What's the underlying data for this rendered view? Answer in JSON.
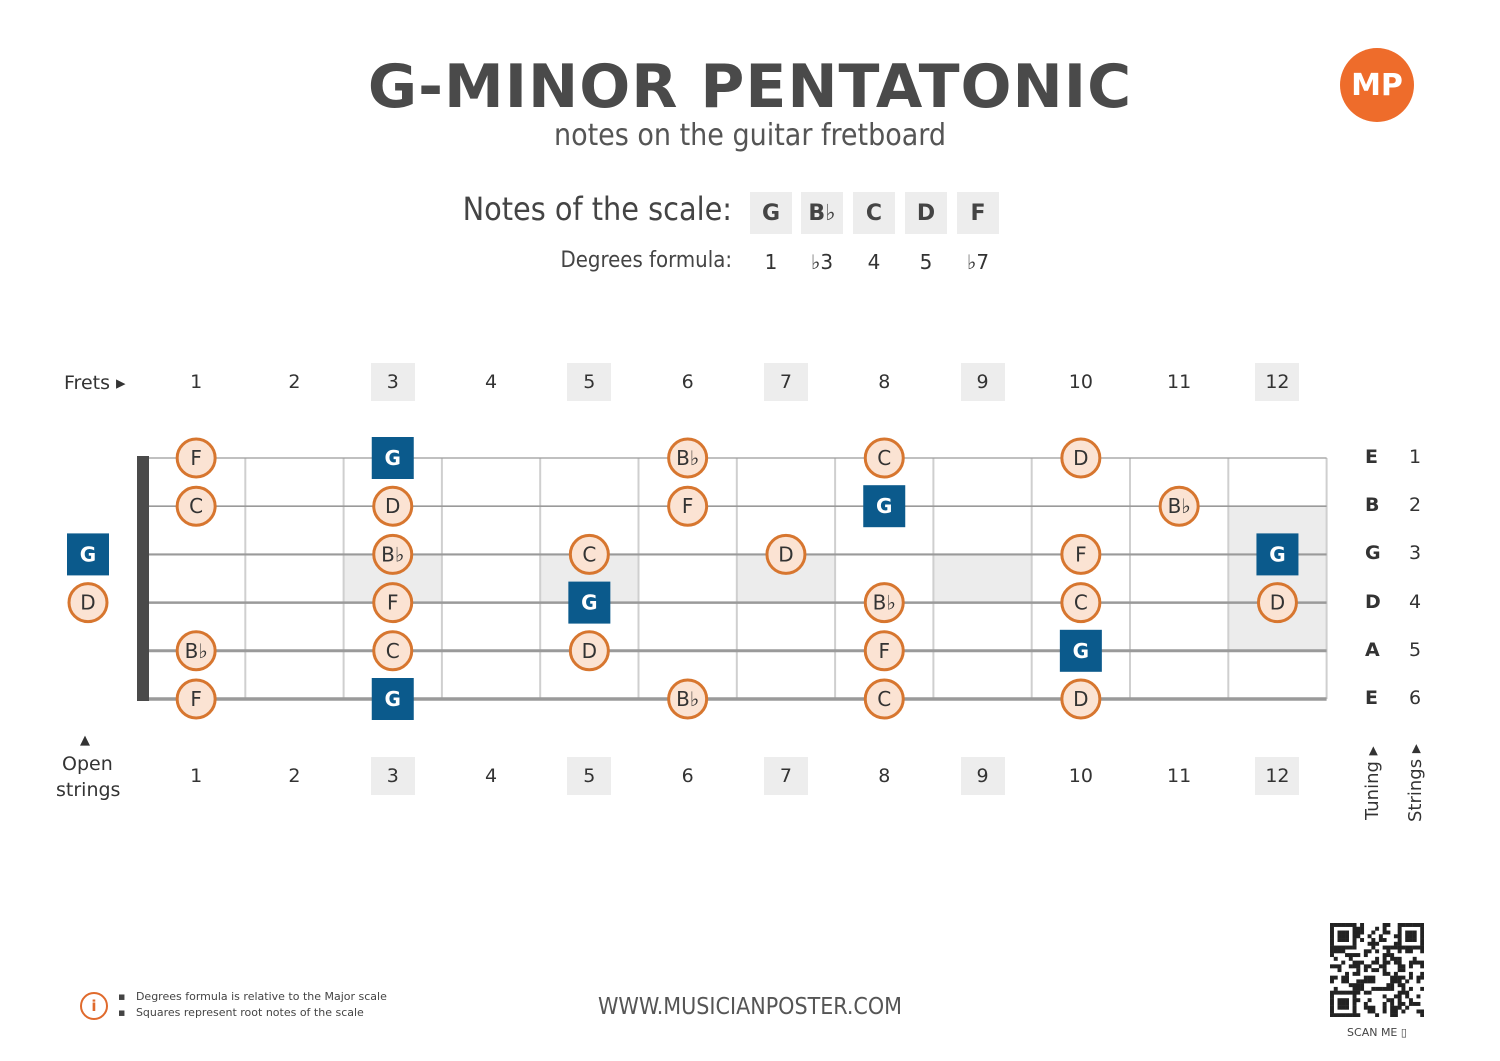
{
  "title": "G-MINOR PENTATONIC",
  "subtitle": "notes on the guitar fretboard",
  "logo_text": "MP",
  "scale": {
    "label": "Notes of the scale:",
    "notes": [
      "G",
      "B♭",
      "C",
      "D",
      "F"
    ],
    "degrees_label": "Degrees formula:",
    "degrees": [
      "1",
      "♭3",
      "4",
      "5",
      "♭7"
    ]
  },
  "frets": {
    "label": "Frets ▸",
    "numbers": [
      "1",
      "2",
      "3",
      "4",
      "5",
      "6",
      "7",
      "8",
      "9",
      "10",
      "11",
      "12"
    ],
    "inlay_frets": [
      3,
      5,
      7,
      9,
      12
    ]
  },
  "open_strings_label_1": "Open",
  "open_strings_label_2": "strings",
  "open_marker": "▲",
  "strings": [
    {
      "tuning": "E",
      "number": "1"
    },
    {
      "tuning": "B",
      "number": "2"
    },
    {
      "tuning": "G",
      "number": "3"
    },
    {
      "tuning": "D",
      "number": "4"
    },
    {
      "tuning": "A",
      "number": "5"
    },
    {
      "tuning": "E",
      "number": "6"
    }
  ],
  "tuning_label": "Tuning ▸",
  "strings_label": "Strings ▸",
  "root_note": "G",
  "fret_notes": [
    {
      "string": 1,
      "fret": 1,
      "note": "F"
    },
    {
      "string": 1,
      "fret": 3,
      "note": "G"
    },
    {
      "string": 1,
      "fret": 6,
      "note": "B♭"
    },
    {
      "string": 1,
      "fret": 8,
      "note": "C"
    },
    {
      "string": 1,
      "fret": 10,
      "note": "D"
    },
    {
      "string": 2,
      "fret": 1,
      "note": "C"
    },
    {
      "string": 2,
      "fret": 3,
      "note": "D"
    },
    {
      "string": 2,
      "fret": 6,
      "note": "F"
    },
    {
      "string": 2,
      "fret": 8,
      "note": "G"
    },
    {
      "string": 2,
      "fret": 11,
      "note": "B♭"
    },
    {
      "string": 3,
      "fret": 0,
      "note": "G"
    },
    {
      "string": 3,
      "fret": 3,
      "note": "B♭"
    },
    {
      "string": 3,
      "fret": 5,
      "note": "C"
    },
    {
      "string": 3,
      "fret": 7,
      "note": "D"
    },
    {
      "string": 3,
      "fret": 10,
      "note": "F"
    },
    {
      "string": 3,
      "fret": 12,
      "note": "G"
    },
    {
      "string": 4,
      "fret": 0,
      "note": "D"
    },
    {
      "string": 4,
      "fret": 3,
      "note": "F"
    },
    {
      "string": 4,
      "fret": 5,
      "note": "G"
    },
    {
      "string": 4,
      "fret": 8,
      "note": "B♭"
    },
    {
      "string": 4,
      "fret": 10,
      "note": "C"
    },
    {
      "string": 4,
      "fret": 12,
      "note": "D"
    },
    {
      "string": 5,
      "fret": 1,
      "note": "B♭"
    },
    {
      "string": 5,
      "fret": 3,
      "note": "C"
    },
    {
      "string": 5,
      "fret": 5,
      "note": "D"
    },
    {
      "string": 5,
      "fret": 8,
      "note": "F"
    },
    {
      "string": 5,
      "fret": 10,
      "note": "G"
    },
    {
      "string": 6,
      "fret": 1,
      "note": "F"
    },
    {
      "string": 6,
      "fret": 3,
      "note": "G"
    },
    {
      "string": 6,
      "fret": 6,
      "note": "B♭"
    },
    {
      "string": 6,
      "fret": 8,
      "note": "C"
    },
    {
      "string": 6,
      "fret": 10,
      "note": "D"
    }
  ],
  "colors": {
    "root_fill": "#0b5a8c",
    "note_fill": "#fbe3d3",
    "note_stroke": "#d7762f",
    "accent": "#ee6c2b"
  },
  "info": {
    "icon": "info-icon",
    "lines": [
      "Degrees formula is relative to the Major scale",
      "Squares represent root notes of the scale"
    ]
  },
  "footer_url": "WWW.MUSICIANPOSTER.COM",
  "scan_me": "SCAN ME"
}
